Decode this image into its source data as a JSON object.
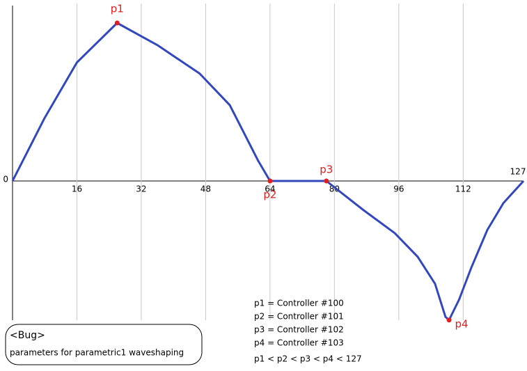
{
  "chart_data": {
    "type": "line",
    "x": [
      0,
      8,
      16,
      22,
      26,
      36,
      46.5,
      54,
      61,
      64,
      78,
      87,
      95,
      100.7,
      105,
      107.6,
      108.5,
      111,
      114,
      118,
      122,
      127
    ],
    "series": [
      {
        "color": "#3347bd",
        "values": [
          0,
          0.4,
          0.75,
          0.9,
          1,
          0.86,
          0.68,
          0.48,
          0.13,
          0,
          0,
          -0.18,
          -0.33,
          -0.48,
          -0.65,
          -0.86,
          -0.88,
          -0.75,
          -0.55,
          -0.31,
          -0.14,
          0
        ]
      }
    ],
    "xlim": [
      0,
      127
    ],
    "xticks": [
      0,
      16,
      32,
      48,
      64,
      80,
      96,
      112,
      127
    ],
    "ylim": [
      -1.2,
      1.1
    ],
    "grid": true,
    "points": [
      {
        "label": "p1",
        "x": 26,
        "y": 1,
        "color": "#e02020"
      },
      {
        "label": "p2",
        "x": 64,
        "y": 0,
        "color": "#e02020"
      },
      {
        "label": "p3",
        "x": 78,
        "y": 0,
        "color": "#e02020"
      },
      {
        "label": "p4",
        "x": 108.5,
        "y": -0.88,
        "color": "#e02020"
      }
    ],
    "notes": [
      "p1 = Controller #100",
      "p2 = Controller #101",
      "p3 = Controller #102",
      "p4 = Controller #103",
      "p1 < p2 < p3 < p4 < 127"
    ],
    "box": {
      "title": "<Bug>",
      "text": "parameters for parametric1 waveshaping"
    }
  }
}
